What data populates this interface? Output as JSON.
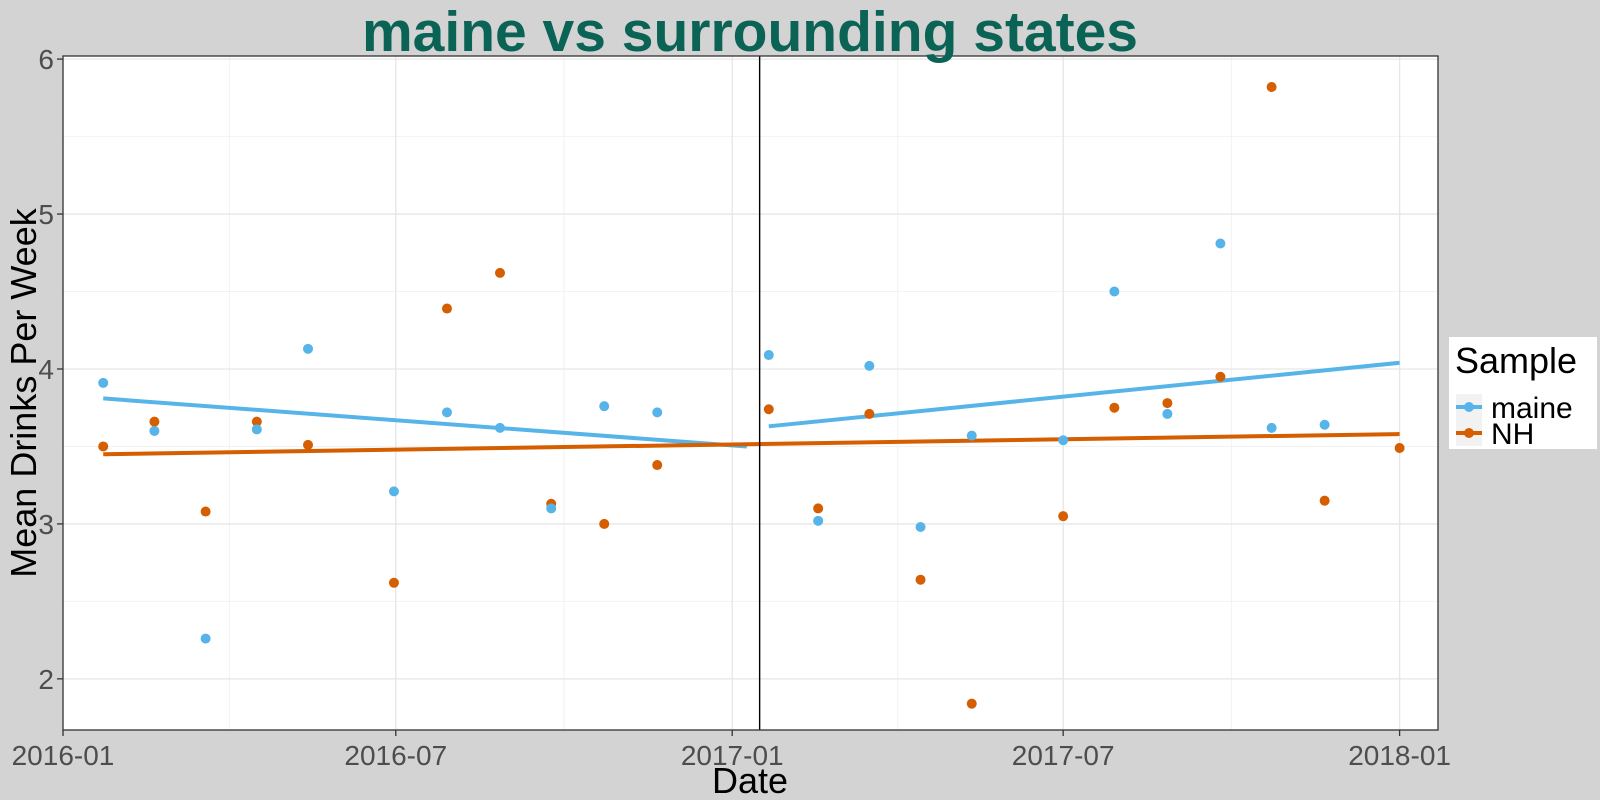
{
  "chart_data": {
    "type": "scatter",
    "title": "maine vs surrounding states",
    "xlabel": "Date",
    "ylabel": "Mean Drinks Per Week",
    "xlim": [
      "2016-01-01",
      "2018-01-22"
    ],
    "ylim": [
      1.67,
      6.02
    ],
    "x_ticks": [
      "2016-01-01",
      "2016-07-01",
      "2017-01-01",
      "2017-07-01",
      "2018-01-01"
    ],
    "x_tick_labels": [
      "2016-01",
      "2016-07",
      "2017-01",
      "2017-07",
      "2018-01"
    ],
    "y_ticks": [
      2,
      3,
      4,
      5,
      6
    ],
    "y_tick_labels": [
      "2",
      "3",
      "4",
      "5",
      "6"
    ],
    "grid": true,
    "vline": "2017-01-16",
    "legend": {
      "title": "Sample",
      "position": "right"
    },
    "colors": {
      "maine": "#56B4E9",
      "NH": "#D55E00",
      "title": "#0B6356",
      "panel_bg": "#FFFFFF",
      "plot_bg": "#D3D3D3"
    },
    "series": [
      {
        "name": "maine",
        "color": "#56B4E9",
        "points": [
          [
            "2016-01-23",
            3.91
          ],
          [
            "2016-02-20",
            3.6
          ],
          [
            "2016-03-19",
            2.26
          ],
          [
            "2016-04-16",
            3.61
          ],
          [
            "2016-05-14",
            4.13
          ],
          [
            "2016-06-30",
            3.21
          ],
          [
            "2016-07-29",
            3.72
          ],
          [
            "2016-08-27",
            3.62
          ],
          [
            "2016-09-24",
            3.1
          ],
          [
            "2016-10-23",
            3.76
          ],
          [
            "2016-11-21",
            3.72
          ],
          [
            "2017-01-21",
            4.09
          ],
          [
            "2017-02-17",
            3.02
          ],
          [
            "2017-03-17",
            4.02
          ],
          [
            "2017-04-14",
            2.98
          ],
          [
            "2017-05-12",
            3.57
          ],
          [
            "2017-07-01",
            3.54
          ],
          [
            "2017-07-29",
            4.5
          ],
          [
            "2017-08-27",
            3.71
          ],
          [
            "2017-09-25",
            4.81
          ],
          [
            "2017-10-23",
            3.62
          ],
          [
            "2017-11-21",
            3.64
          ]
        ],
        "trend": [
          [
            [
              "2016-01-23",
              3.81
            ],
            [
              "2017-01-09",
              3.5
            ]
          ],
          [
            [
              "2017-01-21",
              3.63
            ],
            [
              "2018-01-01",
              4.04
            ]
          ]
        ]
      },
      {
        "name": "NH",
        "color": "#D55E00",
        "points": [
          [
            "2016-01-23",
            3.5
          ],
          [
            "2016-02-20",
            3.66
          ],
          [
            "2016-03-19",
            3.08
          ],
          [
            "2016-04-16",
            3.66
          ],
          [
            "2016-05-14",
            3.51
          ],
          [
            "2016-06-30",
            2.62
          ],
          [
            "2016-07-29",
            4.39
          ],
          [
            "2016-08-27",
            4.62
          ],
          [
            "2016-09-24",
            3.13
          ],
          [
            "2016-10-23",
            3.0
          ],
          [
            "2016-11-21",
            3.38
          ],
          [
            "2017-01-21",
            3.74
          ],
          [
            "2017-02-17",
            3.1
          ],
          [
            "2017-03-17",
            3.71
          ],
          [
            "2017-04-14",
            2.64
          ],
          [
            "2017-05-12",
            1.84
          ],
          [
            "2017-07-01",
            3.05
          ],
          [
            "2017-07-29",
            3.75
          ],
          [
            "2017-08-27",
            3.78
          ],
          [
            "2017-09-25",
            3.95
          ],
          [
            "2017-10-23",
            5.82
          ],
          [
            "2017-11-21",
            3.15
          ],
          [
            "2018-01-01",
            3.49
          ]
        ],
        "trend": [
          [
            [
              "2016-01-23",
              3.45
            ],
            [
              "2018-01-01",
              3.58
            ]
          ]
        ]
      }
    ]
  }
}
